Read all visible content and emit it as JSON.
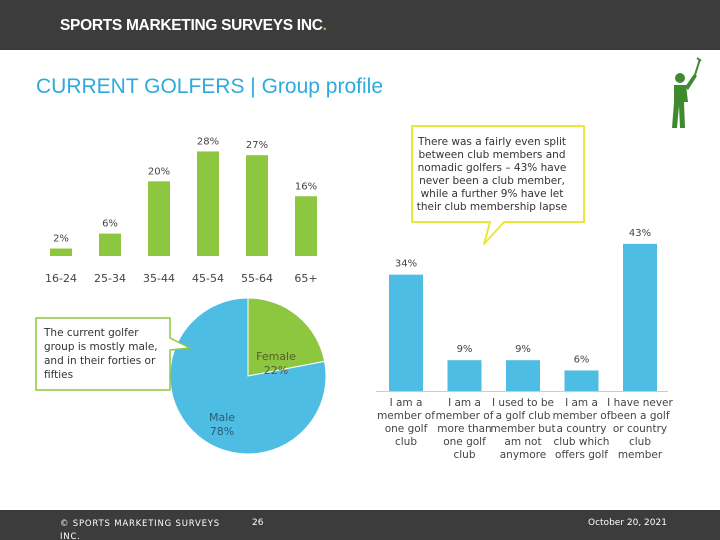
{
  "header": {
    "brand_text": "SPORTS MARKETING SURVEYS INC",
    "brand_dot": "."
  },
  "slide": {
    "title": "CURRENT GOLFERS | Group profile"
  },
  "callout": {
    "text": "There was a fairly even split between club members and nomadic golfers – 43% have never been a club member, while a further 9% have let their club membership lapse"
  },
  "note": {
    "text": "The current golfer group is mostly male, and in their forties or fifties"
  },
  "colors": {
    "green": "#8dc63f",
    "blue": "#4dbde3",
    "dark": "#3c3c3c",
    "title_blue": "#2eaadc"
  },
  "icons": {
    "logo": "golfer-icon"
  },
  "chart_data": [
    {
      "type": "bar",
      "categories": [
        "16-24",
        "25-34",
        "35-44",
        "45-54",
        "55-64",
        "65+"
      ],
      "values": [
        2,
        6,
        20,
        28,
        27,
        16
      ],
      "labels": [
        "2%",
        "6%",
        "20%",
        "28%",
        "27%",
        "16%"
      ],
      "ylim": [
        0,
        30
      ],
      "color": "#8dc63f"
    },
    {
      "type": "pie",
      "slices": [
        {
          "name": "Male",
          "value": 78,
          "label_name": "Male",
          "label_value": "78%",
          "color": "#4dbde3"
        },
        {
          "name": "Female",
          "value": 22,
          "label_name": "Female",
          "label_value": "22%",
          "color": "#8dc63f"
        }
      ]
    },
    {
      "type": "bar",
      "categories": [
        [
          "I am a",
          "member of",
          "one golf",
          "club"
        ],
        [
          "I am a",
          "member of",
          "more than",
          "one golf",
          "club"
        ],
        [
          "I used to be",
          "a golf club",
          "member but",
          "am not",
          "anymore"
        ],
        [
          "I am a",
          "member of",
          "a country",
          "club which",
          "offers golf"
        ],
        [
          "I have never",
          "been a golf",
          "or country",
          "club",
          "member"
        ]
      ],
      "values": [
        34,
        9,
        9,
        6,
        43
      ],
      "labels": [
        "34%",
        "9%",
        "9%",
        "6%",
        "43%"
      ],
      "ylim": [
        0,
        45
      ],
      "color": "#4dbde3"
    }
  ],
  "footer": {
    "copyright": "© SPORTS MARKETING SURVEYS INC.",
    "page": "26",
    "date": "October 20, 2021"
  }
}
